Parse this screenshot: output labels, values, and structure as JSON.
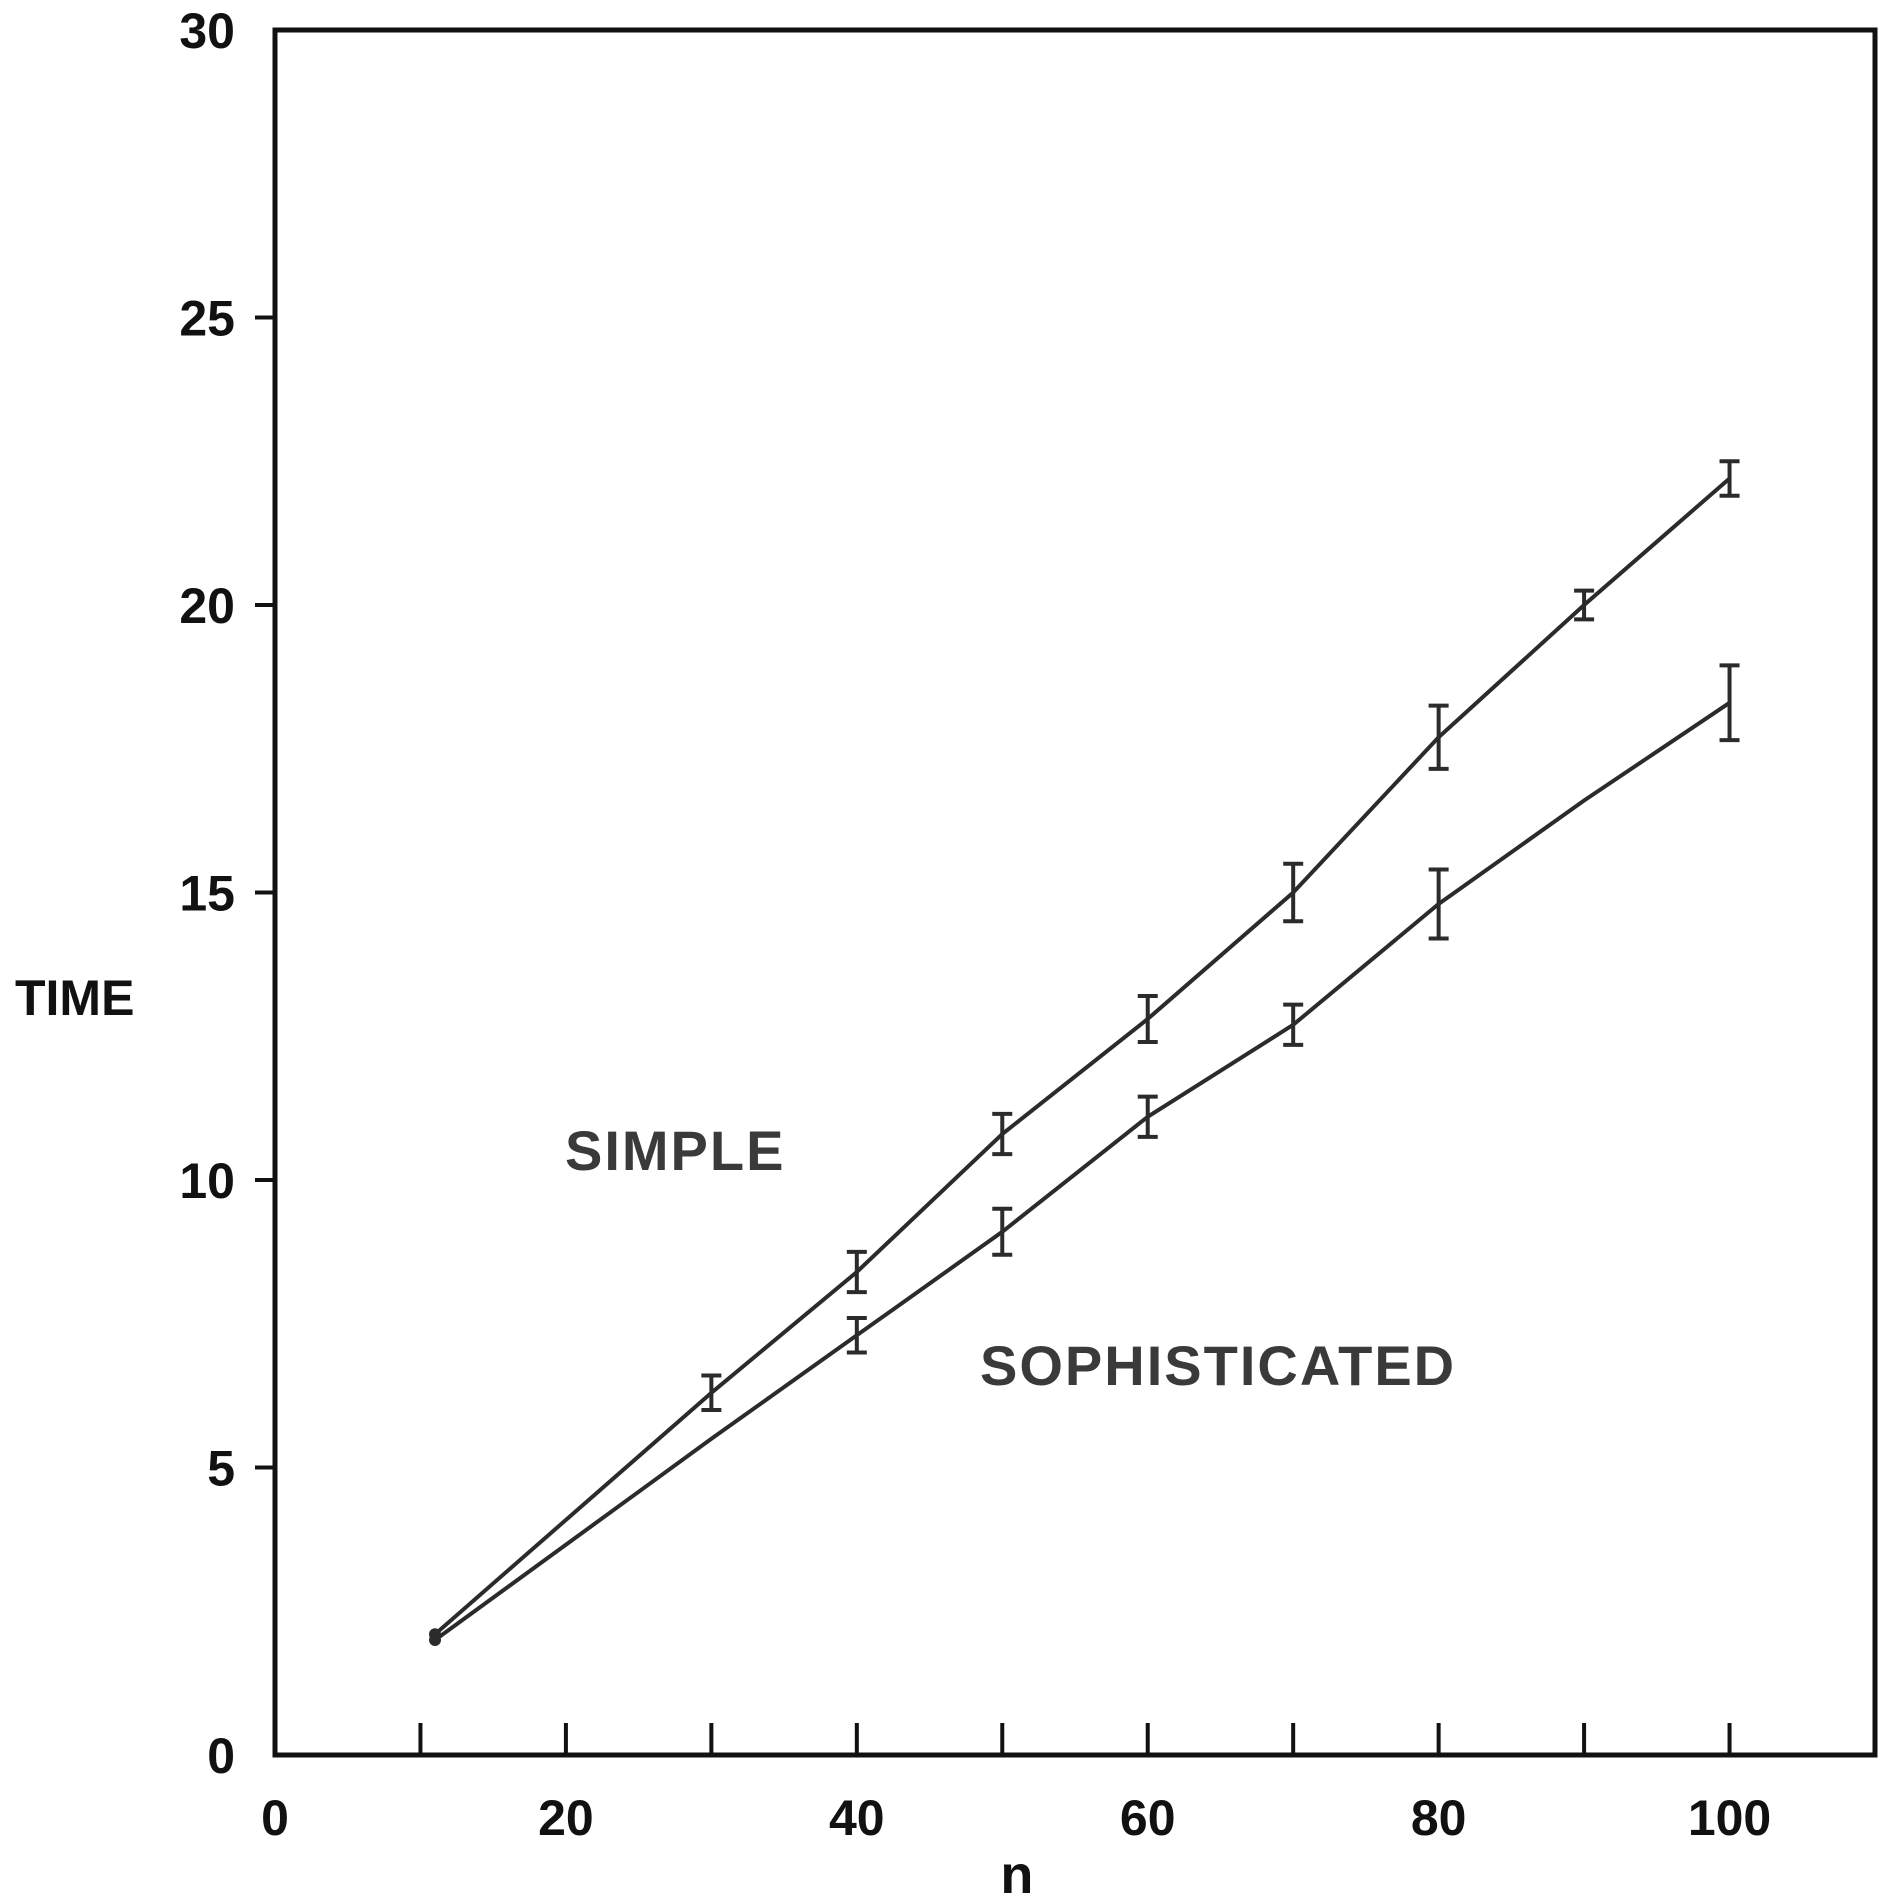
{
  "chart_data": {
    "type": "line",
    "title": "",
    "xlabel": "n",
    "ylabel": "TIME",
    "xlim": [
      0,
      110
    ],
    "ylim": [
      0,
      30
    ],
    "x_ticks": [
      0,
      20,
      40,
      60,
      80,
      100
    ],
    "x_minor_ticks": [
      10,
      30,
      50,
      70,
      90,
      100
    ],
    "y_ticks": [
      0,
      5,
      10,
      15,
      20,
      25,
      30
    ],
    "grid": false,
    "legend": "none",
    "colors": {
      "line": "#2b2b2b",
      "axis": "#111111",
      "text": "#111111"
    },
    "series": [
      {
        "name": "SIMPLE",
        "x": [
          11,
          30,
          40,
          50,
          60,
          70,
          80,
          90,
          100
        ],
        "y": [
          2.1,
          6.3,
          8.4,
          10.8,
          12.8,
          15.0,
          17.7,
          20.0,
          22.2
        ],
        "err": [
          0,
          0.3,
          0.35,
          0.35,
          0.4,
          0.5,
          0.55,
          0.25,
          0.3
        ]
      },
      {
        "name": "SOPHISTICATED",
        "x": [
          11,
          30,
          40,
          50,
          60,
          70,
          80,
          90,
          100
        ],
        "y": [
          2.0,
          5.5,
          7.3,
          9.1,
          11.1,
          12.7,
          14.8,
          16.6,
          18.3
        ],
        "err": [
          0,
          0,
          0.3,
          0.4,
          0.35,
          0.35,
          0.6,
          0,
          0.65
        ]
      }
    ]
  }
}
